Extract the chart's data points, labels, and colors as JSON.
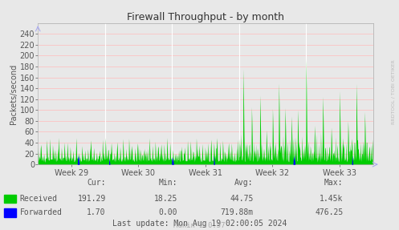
{
  "title": "Firewall Throughput - by month",
  "ylabel": "Packets/second",
  "background_color": "#e8e8e8",
  "plot_bg_color": "#e8e8e8",
  "ylim": [
    0,
    260
  ],
  "yticks": [
    0,
    20,
    40,
    60,
    80,
    100,
    120,
    140,
    160,
    180,
    200,
    220,
    240
  ],
  "week_labels": [
    "Week 29",
    "Week 30",
    "Week 31",
    "Week 32",
    "Week 33"
  ],
  "grid_v_color": "#ffffff",
  "grid_h_color": "#ffbbbb",
  "received_color": "#00cc00",
  "forwarded_color": "#0000ff",
  "legend_received": "Received",
  "legend_forwarded": "Forwarded",
  "last_update": "Last update: Mon Aug 19 02:00:05 2024",
  "munin_version": "Munin 2.0.57",
  "watermark": "RRDTOOL / TOBI OETIKER",
  "title_fontsize": 9,
  "axis_fontsize": 7,
  "label_fontsize": 7,
  "stats_cur_received": "191.29",
  "stats_min_received": "18.25",
  "stats_avg_received": "44.75",
  "stats_max_received": "1.45k",
  "stats_cur_forwarded": "1.70",
  "stats_min_forwarded": "0.00",
  "stats_avg_forwarded": "719.88m",
  "stats_max_forwarded": "476.25"
}
